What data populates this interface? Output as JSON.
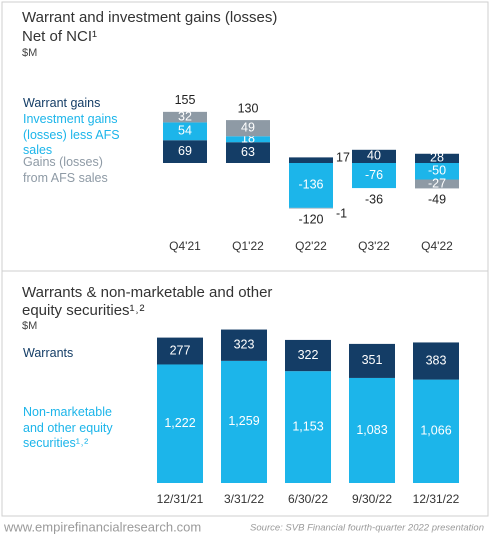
{
  "chart_data": [
    {
      "type": "bar",
      "stacked": true,
      "title": "Warrant and investment gains (losses)",
      "subtitle": "Net of NCI¹",
      "unit": "$M",
      "categories": [
        "Q4'21",
        "Q1'22",
        "Q2'22",
        "Q3'22",
        "Q4'22"
      ],
      "series": [
        {
          "name": "Warrant gains",
          "color": "#143d66",
          "values": [
            69,
            63,
            17,
            40,
            28
          ]
        },
        {
          "name": "Investment gains (losses) less AFS sales",
          "color": "#1cb5ea",
          "values": [
            54,
            18,
            -136,
            -76,
            -50
          ]
        },
        {
          "name": "Gains (losses) from AFS sales",
          "color": "#8e9aa5",
          "values": [
            32,
            49,
            -1,
            null,
            -27
          ]
        }
      ],
      "totals": [
        155,
        130,
        -120,
        -36,
        -49
      ]
    },
    {
      "type": "bar",
      "stacked": true,
      "title": "Warrants & non-marketable and other equity securities¹˒²",
      "unit": "$M",
      "categories": [
        "12/31/21",
        "3/31/22",
        "6/30/22",
        "9/30/22",
        "12/31/22"
      ],
      "series": [
        {
          "name": "Non-marketable and other equity securities¹˒²",
          "color": "#1cb5ea",
          "values": [
            1222,
            1259,
            1153,
            1083,
            1066
          ],
          "value_labels": [
            "1,222",
            "1,259",
            "1,153",
            "1,083",
            "1,066"
          ]
        },
        {
          "name": "Warrants",
          "color": "#143d66",
          "values": [
            277,
            323,
            322,
            351,
            383
          ]
        }
      ]
    }
  ],
  "footer": {
    "website": "www.empirefinancialresearch.com",
    "source": "Source: SVB Financial fourth-quarter 2022 presentation"
  }
}
